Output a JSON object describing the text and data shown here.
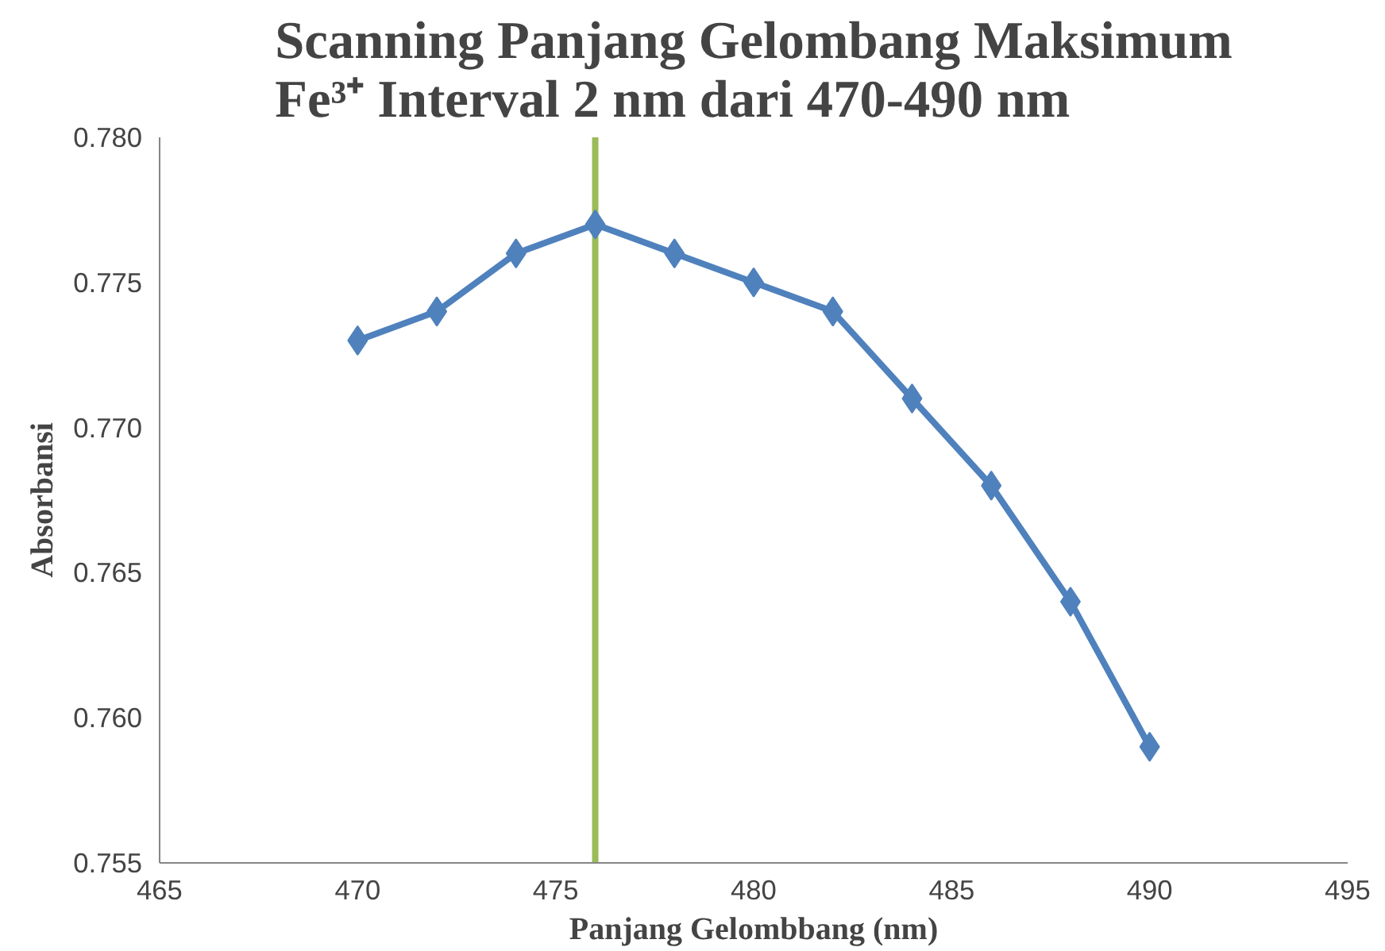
{
  "chart_data": {
    "type": "line",
    "title": "Scanning Panjang Gelombang Maksimum\nFe³⁺ Interval 2 nm dari 470-490 nm",
    "xlabel": "Panjang Gelombbang (nm)",
    "ylabel": "Absorbansi",
    "x": [
      470,
      472,
      474,
      476,
      478,
      480,
      482,
      484,
      486,
      488,
      490
    ],
    "series": [
      {
        "color": "#4f81bd",
        "values": [
          0.773,
          0.774,
          0.776,
          0.777,
          0.776,
          0.775,
          0.774,
          0.771,
          0.768,
          0.764,
          0.759
        ]
      }
    ],
    "xlim": [
      465,
      495
    ],
    "xticks": [
      465,
      470,
      475,
      480,
      485,
      490,
      495
    ],
    "ylim": [
      0.755,
      0.78
    ],
    "yticks": [
      {
        "value": 0.755,
        "label": "0.755"
      },
      {
        "value": 0.76,
        "label": "0.760"
      },
      {
        "value": 0.765,
        "label": "0.765"
      },
      {
        "value": 0.77,
        "label": "0.770"
      },
      {
        "value": 0.775,
        "label": "0.775"
      },
      {
        "value": 0.78,
        "label": "0.780"
      }
    ],
    "ref_lines": [
      {
        "axis": "x",
        "value": 476,
        "color": "#9bbb59"
      }
    ],
    "marker": "diamond",
    "line_style": "solid",
    "grid": false
  }
}
